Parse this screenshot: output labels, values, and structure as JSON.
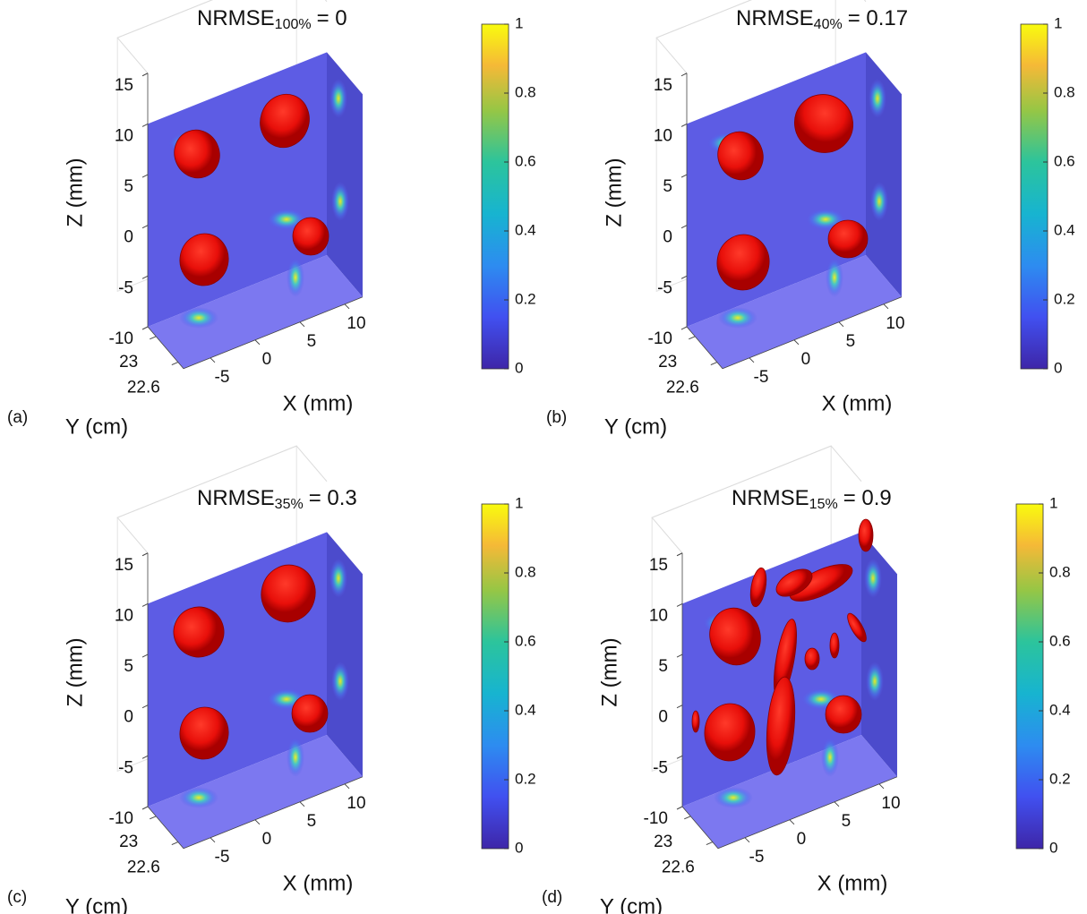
{
  "chart_data": [
    {
      "type": "isosurface3d",
      "panel_label": "(a)",
      "title": "NRMSE",
      "title_subscript": "100%",
      "title_suffix": "= 0",
      "xlabel": "X (mm)",
      "ylabel": "Y (cm)",
      "zlabel": "Z (mm)",
      "xticks": [
        -5,
        0,
        5,
        10
      ],
      "yticks": [
        23,
        22.6
      ],
      "zticks": [
        -10,
        -5,
        0,
        5,
        10,
        15
      ],
      "colorbar": {
        "lim": [
          0,
          1
        ],
        "ticks": [
          0,
          0.2,
          0.4,
          0.6,
          0.8,
          1
        ]
      }
    },
    {
      "type": "isosurface3d",
      "panel_label": "(b)",
      "title": "NRMSE",
      "title_subscript": "40%",
      "title_suffix": "= 0.17",
      "xlabel": "X (mm)",
      "ylabel": "Y (cm)",
      "zlabel": "Z (mm)",
      "xticks": [
        -5,
        0,
        5,
        10
      ],
      "yticks": [
        23,
        22.6
      ],
      "zticks": [
        -10,
        -5,
        0,
        5,
        10,
        15
      ],
      "colorbar": {
        "lim": [
          0,
          1
        ],
        "ticks": [
          0,
          0.2,
          0.4,
          0.6,
          0.8,
          1
        ]
      }
    },
    {
      "type": "isosurface3d",
      "panel_label": "(c)",
      "title": "NRMSE",
      "title_subscript": "35%",
      "title_suffix": "= 0.3",
      "xlabel": "X (mm)",
      "ylabel": "Y (cm)",
      "zlabel": "Z (mm)",
      "xticks": [
        -5,
        0,
        5,
        10
      ],
      "yticks": [
        23,
        22.6
      ],
      "zticks": [
        -10,
        -5,
        0,
        5,
        10,
        15
      ],
      "colorbar": {
        "lim": [
          0,
          1
        ],
        "ticks": [
          0,
          0.2,
          0.4,
          0.6,
          0.8,
          1
        ]
      }
    },
    {
      "type": "isosurface3d",
      "panel_label": "(d)",
      "title": "NRMSE",
      "title_subscript": "15%",
      "title_suffix": "= 0.9",
      "xlabel": "X (mm)",
      "ylabel": "Y (cm)",
      "zlabel": "Z (mm)",
      "xticks": [
        -5,
        0,
        5,
        10
      ],
      "yticks": [
        23,
        22.6
      ],
      "zticks": [
        -10,
        -5,
        0,
        5,
        10,
        15
      ],
      "colorbar": {
        "lim": [
          0,
          1
        ],
        "ticks": [
          0,
          0.2,
          0.4,
          0.6,
          0.8,
          1
        ]
      }
    }
  ]
}
